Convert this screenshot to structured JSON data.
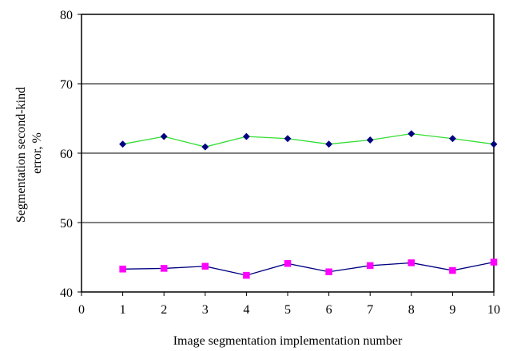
{
  "chart_data": {
    "type": "line",
    "title": "",
    "xlabel": "Image segmentation implementation number",
    "ylabel_lines": [
      "Segmentation second-kind",
      "error, %"
    ],
    "xlim": [
      0,
      10
    ],
    "ylim": [
      40,
      80
    ],
    "x_ticks": [
      0,
      1,
      2,
      3,
      4,
      5,
      6,
      7,
      8,
      9,
      10
    ],
    "y_ticks": [
      40,
      50,
      60,
      70,
      80
    ],
    "grid": "horizontal",
    "legend": "none",
    "x": [
      1,
      2,
      3,
      4,
      5,
      6,
      7,
      8,
      9,
      10
    ],
    "series": [
      {
        "values": [
          61.3,
          62.4,
          60.9,
          62.4,
          62.1,
          61.3,
          61.9,
          62.8,
          62.1,
          61.3
        ],
        "line_color": "#33dd33",
        "marker_color": "#000080",
        "marker": "diamond"
      },
      {
        "values": [
          43.3,
          43.4,
          43.7,
          42.4,
          44.1,
          42.9,
          43.8,
          44.2,
          43.1,
          44.3
        ],
        "line_color": "#000080",
        "marker_color": "#ff00ff",
        "marker": "square"
      }
    ]
  }
}
